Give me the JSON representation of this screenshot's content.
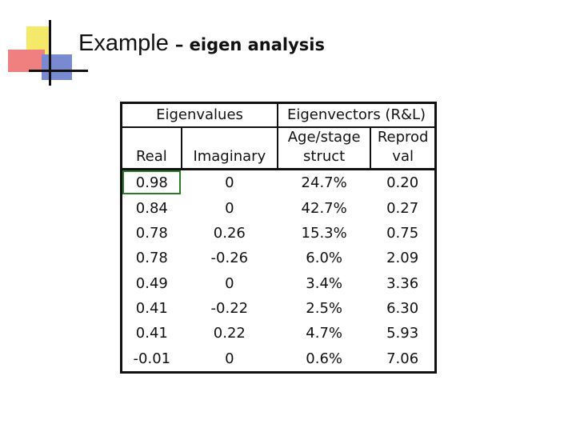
{
  "title": {
    "main": "Example",
    "sub": "– eigen analysis"
  },
  "table": {
    "groups": [
      "Eigenvalues",
      "Eigenvectors (R&L)"
    ],
    "columns": [
      "Real",
      "Imaginary",
      "Age/stage struct",
      "Reprod val"
    ],
    "rows": [
      [
        "0.98",
        "0",
        "24.7%",
        "0.20"
      ],
      [
        "0.84",
        "0",
        "42.7%",
        "0.27"
      ],
      [
        "0.78",
        "0.26",
        "15.3%",
        "0.75"
      ],
      [
        "0.78",
        "-0.26",
        "6.0%",
        "2.09"
      ],
      [
        "0.49",
        "0",
        "3.4%",
        "3.36"
      ],
      [
        "0.41",
        "-0.22",
        "2.5%",
        "6.30"
      ],
      [
        "0.41",
        "0.22",
        "4.7%",
        "5.93"
      ],
      [
        "-0.01",
        "0",
        "0.6%",
        "7.06"
      ]
    ]
  }
}
